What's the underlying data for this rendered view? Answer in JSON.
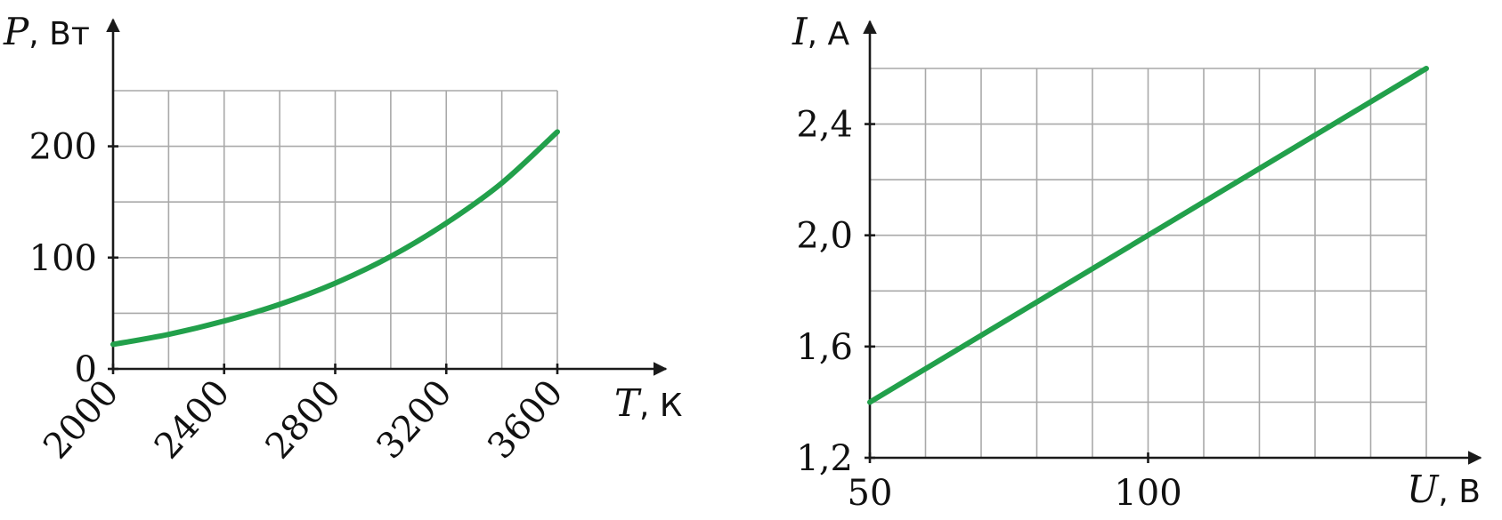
{
  "chart_data": [
    {
      "type": "line",
      "x_label_symbol": "T",
      "x_label_unit": ", К",
      "y_label_symbol": "P",
      "y_label_unit": ", Вт",
      "x_ticks": [
        "2000",
        "2400",
        "2800",
        "3200",
        "3600"
      ],
      "y_ticks": [
        "0",
        "100",
        "200"
      ],
      "xlim": [
        2000,
        3600
      ],
      "ylim": [
        0,
        250
      ],
      "grid": true,
      "series": [
        {
          "color": "#22a04b",
          "x": [
            2000,
            2200,
            2400,
            2600,
            2800,
            3000,
            3200,
            3400,
            3600
          ],
          "y": [
            22,
            31,
            43,
            58,
            77,
            101,
            131,
            167,
            213
          ]
        }
      ]
    },
    {
      "type": "line",
      "x_label_symbol": "U",
      "x_label_unit": ", В",
      "y_label_symbol": "I",
      "y_label_unit": ", А",
      "x_ticks": [
        "50",
        "100"
      ],
      "y_ticks": [
        "1,2",
        "1,6",
        "2,0",
        "2,4"
      ],
      "xlim": [
        50,
        150
      ],
      "ylim": [
        1.2,
        2.6
      ],
      "grid": true,
      "series": [
        {
          "color": "#22a04b",
          "x": [
            50,
            150
          ],
          "y": [
            1.4,
            2.6
          ]
        }
      ]
    }
  ]
}
